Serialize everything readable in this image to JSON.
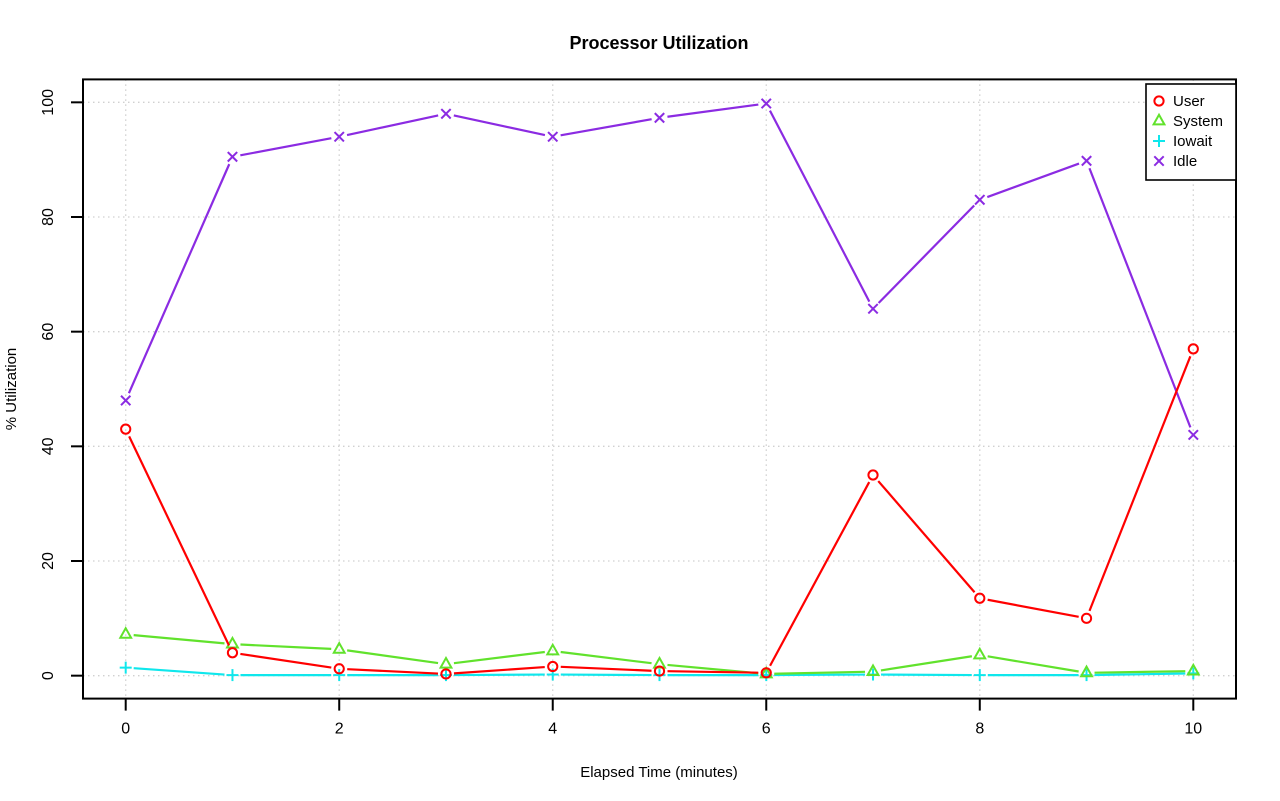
{
  "title": "Processor Utilization",
  "chart_data": {
    "type": "line",
    "title": "Processor Utilization",
    "xlabel": "Elapsed Time (minutes)",
    "ylabel": "% Utilization",
    "x": [
      0,
      1,
      2,
      3,
      4,
      5,
      6,
      7,
      8,
      9,
      10
    ],
    "xticks": [
      0,
      2,
      4,
      6,
      8,
      10
    ],
    "xtick_labels": [
      "0",
      "2",
      "4",
      "6",
      "8",
      "10"
    ],
    "yticks": [
      0,
      20,
      40,
      60,
      80,
      100
    ],
    "ytick_labels": [
      "0",
      "20",
      "40",
      "60",
      "80",
      "100"
    ],
    "xlim": [
      -0.4,
      10.4
    ],
    "ylim": [
      -4,
      104
    ],
    "grid": true,
    "grid_style": "dotted",
    "grid_color": "#d0d0d0",
    "legend_position": "topright",
    "series": [
      {
        "name": "User",
        "color": "#ff0000",
        "marker": "circle",
        "values": [
          43,
          4,
          1.2,
          0.3,
          1.6,
          0.8,
          0.5,
          35,
          13.5,
          10,
          57
        ]
      },
      {
        "name": "System",
        "color": "#61e22c",
        "marker": "triangle",
        "values": [
          7.2,
          5.5,
          4.6,
          2,
          4.3,
          2,
          0.3,
          0.7,
          3.6,
          0.5,
          0.8
        ]
      },
      {
        "name": "Iowait",
        "color": "#0fe7ec",
        "marker": "plus",
        "values": [
          1.4,
          0.1,
          0.1,
          0.1,
          0.2,
          0.1,
          0.1,
          0.2,
          0.1,
          0.1,
          0.4
        ]
      },
      {
        "name": "Idle",
        "color": "#8b2be2",
        "marker": "x",
        "values": [
          48,
          90.5,
          94,
          98,
          94,
          97.3,
          99.8,
          64,
          83,
          89.8,
          42
        ]
      }
    ]
  }
}
